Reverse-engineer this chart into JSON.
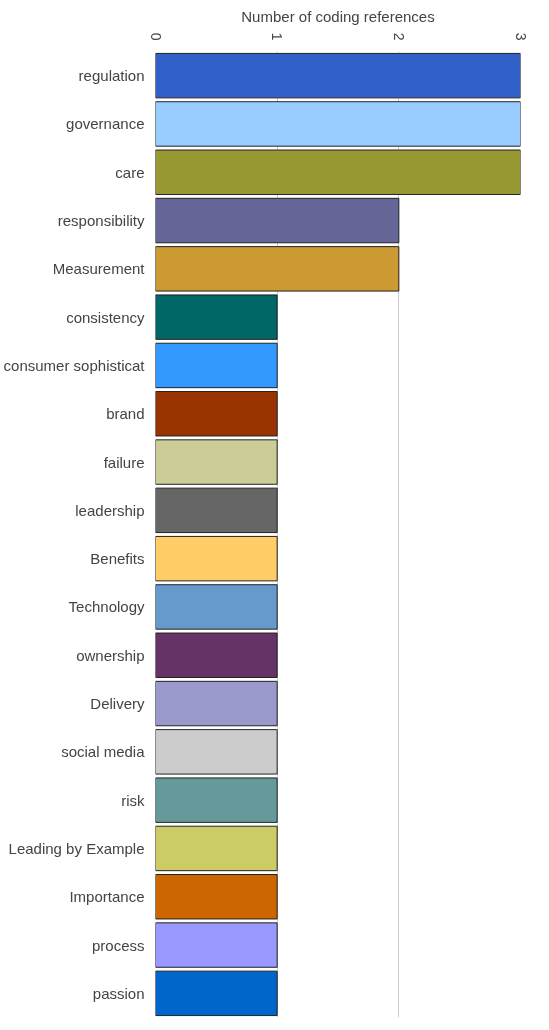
{
  "chart_data": {
    "type": "bar",
    "orientation": "horizontal",
    "title": "Number of coding references",
    "categories": [
      "regulation",
      "governance",
      "care",
      "responsibility",
      "Measurement",
      "consistency",
      "consumer sophisticat",
      "brand",
      "failure",
      "leadership",
      "Benefits",
      "Technology",
      "ownership",
      "Delivery",
      "social media",
      "risk",
      "Leading by Example",
      "Importance",
      "process",
      "passion"
    ],
    "values": [
      3,
      3,
      3,
      2,
      2,
      1,
      1,
      1,
      1,
      1,
      1,
      1,
      1,
      1,
      1,
      1,
      1,
      1,
      1,
      1
    ],
    "colors": [
      "#3060c8",
      "#99ccff",
      "#999933",
      "#666699",
      "#cc9933",
      "#006666",
      "#3399ff",
      "#993300",
      "#cccc99",
      "#666666",
      "#ffcc66",
      "#6699cc",
      "#663366",
      "#9999cc",
      "#cccccc",
      "#669999",
      "#cccc66",
      "#cc6600",
      "#9999ff",
      "#0066cc"
    ],
    "xlim": [
      0,
      3
    ],
    "xticks": [
      0,
      1,
      2,
      3
    ],
    "grid": "x"
  }
}
